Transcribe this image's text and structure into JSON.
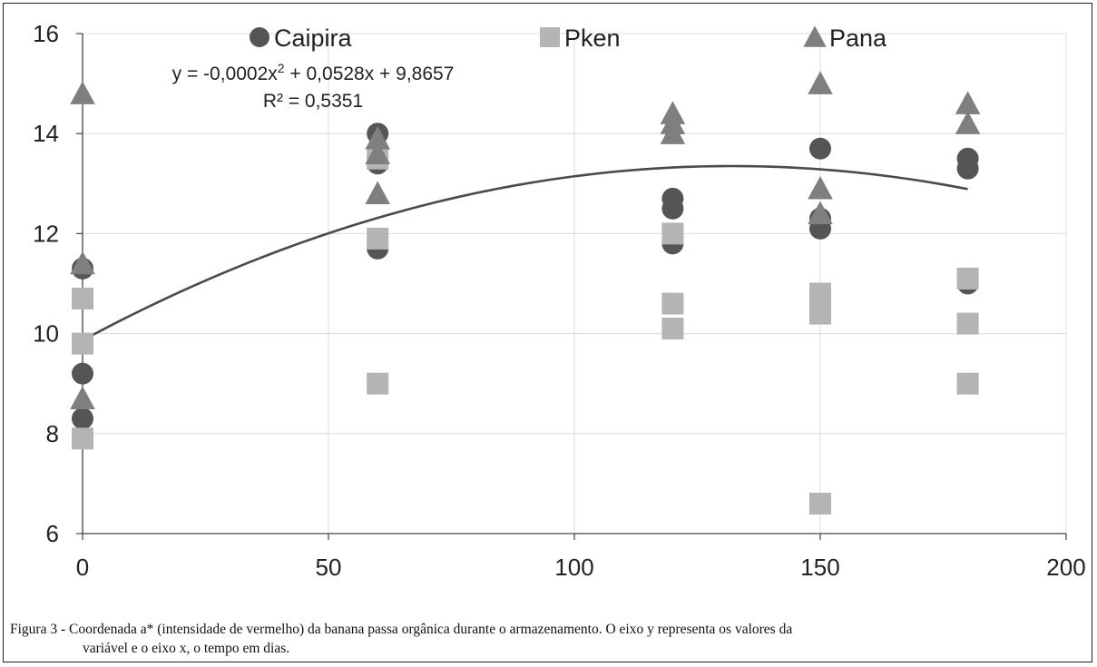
{
  "chart_data": {
    "type": "scatter",
    "title": "",
    "xlabel": "",
    "ylabel": "",
    "xlim": [
      0,
      200
    ],
    "ylim": [
      6,
      16
    ],
    "x_ticks": [
      "0",
      "50",
      "100",
      "150",
      "200"
    ],
    "y_ticks": [
      "6",
      "8",
      "10",
      "12",
      "14",
      "16"
    ],
    "grid": true,
    "legend_position": "top",
    "series": [
      {
        "name": "Caipira",
        "marker": "circle",
        "color": "#555555",
        "points": [
          [
            0,
            11.3
          ],
          [
            0,
            9.2
          ],
          [
            0,
            8.3
          ],
          [
            60,
            14.0
          ],
          [
            60,
            13.4
          ],
          [
            60,
            11.7
          ],
          [
            120,
            12.7
          ],
          [
            120,
            12.5
          ],
          [
            120,
            11.8
          ],
          [
            150,
            13.7
          ],
          [
            150,
            12.3
          ],
          [
            150,
            12.1
          ],
          [
            180,
            13.5
          ],
          [
            180,
            13.3
          ],
          [
            180,
            11.0
          ]
        ]
      },
      {
        "name": "Pken",
        "marker": "square",
        "color": "#b4b4b4",
        "points": [
          [
            0,
            10.7
          ],
          [
            0,
            9.8
          ],
          [
            0,
            7.9
          ],
          [
            60,
            13.5
          ],
          [
            60,
            11.9
          ],
          [
            60,
            9.0
          ],
          [
            120,
            12.0
          ],
          [
            120,
            10.6
          ],
          [
            120,
            10.1
          ],
          [
            150,
            10.8
          ],
          [
            150,
            10.4
          ],
          [
            150,
            6.6
          ],
          [
            180,
            11.1
          ],
          [
            180,
            10.2
          ],
          [
            180,
            9.0
          ]
        ]
      },
      {
        "name": "Pana",
        "marker": "triangle",
        "color": "#7f7f7f",
        "points": [
          [
            0,
            14.8
          ],
          [
            0,
            11.4
          ],
          [
            0,
            8.7
          ],
          [
            60,
            13.9
          ],
          [
            60,
            13.6
          ],
          [
            60,
            12.8
          ],
          [
            120,
            14.4
          ],
          [
            120,
            14.2
          ],
          [
            120,
            14.0
          ],
          [
            150,
            15.0
          ],
          [
            150,
            12.9
          ],
          [
            150,
            12.4
          ],
          [
            180,
            14.6
          ],
          [
            180,
            14.2
          ]
        ]
      }
    ],
    "trendline": {
      "type": "polynomial",
      "coefficients": [
        -0.0002,
        0.0528,
        9.8657
      ],
      "x_range": [
        0,
        180
      ],
      "color": "#4a4a4a",
      "equation_label": "y = -0,0002x² + 0,0528x + 9,8657",
      "r2_label": "R² = 0,5351"
    }
  },
  "caption": {
    "line1": "Figura 3 - Coordenada a* (intensidade de vermelho) da banana passa orgânica durante o armazenamento. O eixo y representa os valores da",
    "line2": "variável e o eixo x, o tempo em dias."
  }
}
